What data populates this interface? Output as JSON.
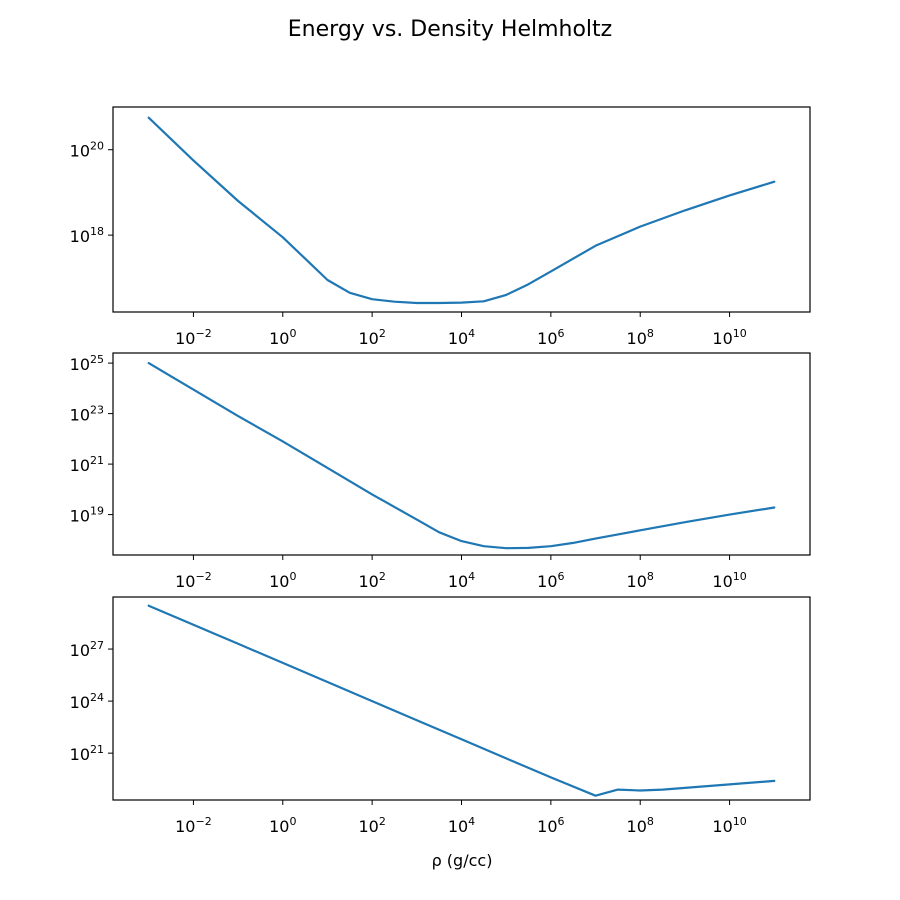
{
  "figure": {
    "title": "Energy vs. Density Helmholtz",
    "xlabel": "ρ (g/cc)"
  },
  "colors": {
    "series": "#1f77b4",
    "axes": "#000000"
  },
  "chart_data": [
    {
      "type": "line",
      "xscale": "log",
      "yscale": "log",
      "xlim_log10": [
        -3.8,
        11.8
      ],
      "ylim_log10": [
        16.2,
        21.0
      ],
      "xticks_log10": [
        -2,
        0,
        2,
        4,
        6,
        8,
        10
      ],
      "yticks_log10": [
        18,
        20
      ],
      "series": [
        {
          "x_log10": [
            -3,
            -2,
            -1,
            0,
            0.5,
            1,
            1.5,
            2,
            2.5,
            3,
            3.5,
            4,
            4.5,
            5,
            5.5,
            6,
            7,
            8,
            9,
            10,
            11
          ],
          "y_log10": [
            20.75,
            19.75,
            18.8,
            17.95,
            17.45,
            16.95,
            16.65,
            16.5,
            16.44,
            16.41,
            16.41,
            16.42,
            16.45,
            16.6,
            16.85,
            17.15,
            17.75,
            18.2,
            18.58,
            18.93,
            19.25
          ]
        }
      ]
    },
    {
      "type": "line",
      "xscale": "log",
      "yscale": "log",
      "xlim_log10": [
        -3.8,
        11.8
      ],
      "ylim_log10": [
        17.4,
        25.4
      ],
      "xticks_log10": [
        -2,
        0,
        2,
        4,
        6,
        8,
        10
      ],
      "yticks_log10": [
        19,
        21,
        23,
        25
      ],
      "series": [
        {
          "x_log10": [
            -3,
            -2,
            -1,
            0,
            1,
            2,
            3,
            3.5,
            4,
            4.5,
            5,
            5.5,
            6,
            6.5,
            7,
            8,
            9,
            10,
            11
          ],
          "y_log10": [
            25.0,
            23.95,
            22.9,
            21.9,
            20.85,
            19.8,
            18.8,
            18.3,
            17.95,
            17.75,
            17.67,
            17.68,
            17.75,
            17.88,
            18.05,
            18.38,
            18.7,
            19.0,
            19.28
          ]
        }
      ]
    },
    {
      "type": "line",
      "xscale": "log",
      "yscale": "log",
      "xlim_log10": [
        -3.8,
        11.8
      ],
      "ylim_log10": [
        18.3,
        30.0
      ],
      "xticks_log10": [
        -2,
        0,
        2,
        4,
        6,
        8,
        10
      ],
      "yticks_log10": [
        21,
        24,
        27
      ],
      "series": [
        {
          "x_log10": [
            -3,
            -2,
            -1,
            0,
            1,
            2,
            3,
            4,
            5,
            6,
            7,
            7.5,
            8,
            8.5,
            9,
            10,
            11
          ],
          "y_log10": [
            29.5,
            28.4,
            27.3,
            26.2,
            25.1,
            24.0,
            22.9,
            21.8,
            20.7,
            19.6,
            18.55,
            18.9,
            18.85,
            18.9,
            19.0,
            19.2,
            19.4
          ]
        }
      ]
    }
  ]
}
